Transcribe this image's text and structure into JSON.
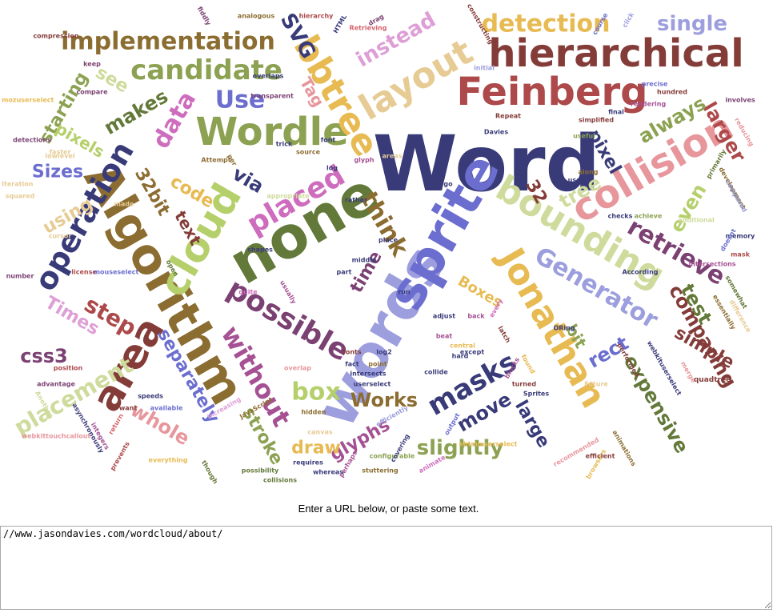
{
  "prompt_text": "Enter a URL below, or paste some text.",
  "url_input": {
    "value": "//www.jasondavies.com/wordcloud/about/"
  },
  "cloud_words": [
    "Word",
    "words",
    "sprite",
    "none",
    "Algorithm",
    "Wordle",
    "bounding",
    "hierarchical",
    "Feinberg",
    "Jonathan",
    "collision",
    "cloud",
    "area",
    "layout",
    "bbtree",
    "operation",
    "implementation",
    "candidate",
    "placed",
    "retrieve",
    "possible",
    "Generator",
    "masks",
    "without",
    "detection",
    "single",
    "think",
    "data",
    "step",
    "Use",
    "placement",
    "box",
    "slightly",
    "larger",
    "comparing",
    "expensive",
    "whole",
    "separately",
    "glyphs",
    "Works",
    "Times",
    "Sizes",
    "css3",
    "using",
    "starting",
    "pixels",
    "makes",
    "see",
    "code",
    "text",
    "via",
    "SVG",
    "instead",
    "Tag",
    "32bit",
    "pixel",
    "always",
    "tree",
    "even",
    "32",
    "test",
    "simple",
    "rect",
    "bit",
    "move",
    "large",
    "stroke",
    "draw",
    "time",
    "Boxes",
    "quadtree",
    "compression",
    "fiddly",
    "analogous",
    "hierarchy",
    "HTML",
    "Retrieving",
    "constructing",
    "course",
    "click",
    "initial",
    "final",
    "precise",
    "hundred",
    "rendering",
    "involves",
    "reducing",
    "development",
    "primarily",
    "compared",
    "additional",
    "memory",
    "mask",
    "doesnt",
    "intersections",
    "achieve",
    "checks",
    "According",
    "somewhat",
    "essentially",
    "difference",
    "merge",
    "webkituserselect",
    "performed",
    "Future",
    "animations",
    "browsers",
    "recommended",
    "output",
    "configurable",
    "stuttering",
    "perhaps",
    "whereas",
    "collisions",
    "requires",
    "possibility",
    "though",
    "everything",
    "available",
    "speeds",
    "want",
    "integers",
    "return",
    "asynchronously",
    "prevents",
    "webkittouchcallout",
    "advantage",
    "Another",
    "position",
    "number",
    "license",
    "mouseselect",
    "open",
    "canvas",
    "hidden",
    "efficiently",
    "userselect",
    "intersects",
    "fact",
    "point",
    "overlap",
    "fonts",
    "JavaScript",
    "increasing",
    "quite",
    "usually",
    "shapes",
    "place",
    "middle",
    "part",
    "rather",
    "glyph",
    "areas",
    "source",
    "font",
    "trick",
    "transparent",
    "log",
    "per",
    "overlaps",
    "compare",
    "Attempt",
    "squared",
    "faster",
    "cursor",
    "made",
    "detections",
    "uses",
    "along",
    "every",
    "turned",
    "Sprites",
    "animate",
    "covering",
    "central",
    "collide",
    "hard",
    "found",
    "except",
    "blocks",
    "Repeat",
    "Davies",
    "mozuserselect",
    "khtmluserselect",
    "useful",
    "lowlevel",
    "Iteration",
    "ORing",
    "latch",
    "keep",
    "drag",
    "appropriate",
    "simplified",
    "efficient",
    "run",
    "go",
    "back",
    "beat",
    "log2",
    "adjust"
  ]
}
